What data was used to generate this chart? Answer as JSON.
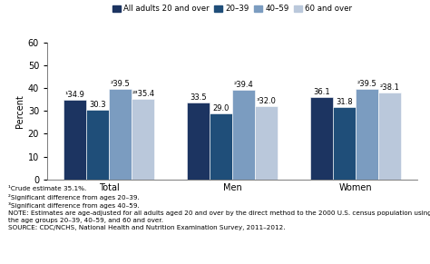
{
  "groups": [
    "Total",
    "Men",
    "Women"
  ],
  "series": [
    {
      "label": "All adults 20 and over",
      "color": "#1c3461",
      "values": [
        34.9,
        33.5,
        36.1
      ],
      "sup_labels": [
        "¹34.9",
        "33.5",
        "36.1"
      ]
    },
    {
      "label": "20–39",
      "color": "#1f4e79",
      "values": [
        30.3,
        29.0,
        31.8
      ],
      "sup_labels": [
        "30.3",
        "29.0",
        "31.8"
      ]
    },
    {
      "label": "40–59",
      "color": "#7b9cc0",
      "values": [
        39.5,
        39.4,
        39.5
      ],
      "sup_labels": [
        "²39.5",
        "²39.4",
        "²39.5"
      ]
    },
    {
      "label": "60 and over",
      "color": "#bac8db",
      "values": [
        35.4,
        32.0,
        38.1
      ],
      "sup_labels": [
        "²³35.4",
        "³32.0",
        "²38.1"
      ]
    }
  ],
  "ylabel": "Percent",
  "ylim": [
    0,
    60
  ],
  "yticks": [
    0,
    10,
    20,
    30,
    40,
    50,
    60
  ],
  "bar_width": 0.185,
  "footnotes": "¹Crude estimate 35.1%.\n²Significant difference from ages 20–39.\n³Significant difference from ages 40–59.\nNOTE: Estimates are age-adjusted for all adults aged 20 and over by the direct method to the 2000 U.S. census population using\nthe age groups 20–39, 40–59, and 60 and over.\nSOURCE: CDC/NCHS, National Health and Nutrition Examination Survey, 2011–2012.",
  "background_color": "#ffffff",
  "footnote_fontsize": 5.2,
  "label_fontsize": 6.0,
  "axis_fontsize": 7,
  "legend_fontsize": 6.2
}
